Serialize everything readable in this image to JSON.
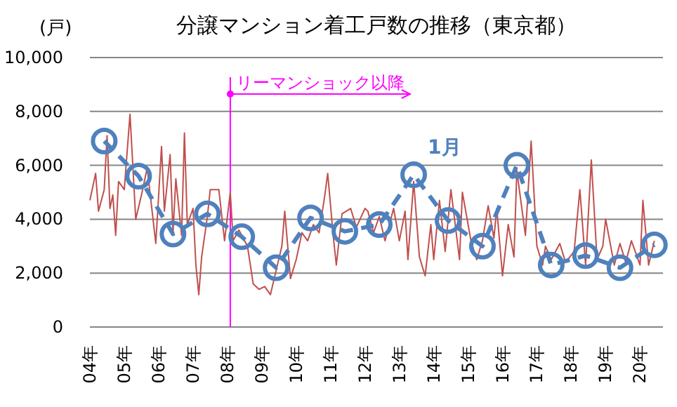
{
  "chart_data": {
    "type": "line",
    "title": "分譲マンション着工戸数の推移（東京都）",
    "ylabel": "(戸)",
    "xlim": [
      "2004-01",
      "2020-09"
    ],
    "xticks": [
      {
        "value": "2004-01",
        "label": "04年"
      },
      {
        "value": "2005-01",
        "label": "05年"
      },
      {
        "value": "2006-01",
        "label": "06年"
      },
      {
        "value": "2007-01",
        "label": "07年"
      },
      {
        "value": "2008-01",
        "label": "08年"
      },
      {
        "value": "2009-01",
        "label": "09年"
      },
      {
        "value": "2010-01",
        "label": "10年"
      },
      {
        "value": "2011-01",
        "label": "11年"
      },
      {
        "value": "2012-01",
        "label": "12年"
      },
      {
        "value": "2013-01",
        "label": "13年"
      },
      {
        "value": "2014-01",
        "label": "14年"
      },
      {
        "value": "2015-01",
        "label": "15年"
      },
      {
        "value": "2016-01",
        "label": "16年"
      },
      {
        "value": "2017-01",
        "label": "17年"
      },
      {
        "value": "2018-01",
        "label": "18年"
      },
      {
        "value": "2019-01",
        "label": "19年"
      },
      {
        "value": "2020-01",
        "label": "20年"
      }
    ],
    "ylim": [
      0,
      10000
    ],
    "yticks": [
      {
        "value": 0,
        "label": "0"
      },
      {
        "value": 2000,
        "label": "2,000"
      },
      {
        "value": 4000,
        "label": "4,000"
      },
      {
        "value": 6000,
        "label": "6,000"
      },
      {
        "value": 8000,
        "label": "8,000"
      },
      {
        "value": 10000,
        "label": "10,000"
      }
    ],
    "grid": "y",
    "legend": false,
    "ref_lines": [
      {
        "axis": "x",
        "value": "2008-02",
        "label": "リーマンショック以降",
        "color": "#ff00ff",
        "line_style": "solid"
      }
    ],
    "series": [
      {
        "color": "#c0504d",
        "marker": "none",
        "line_style": "solid",
        "x": [
          "2004-01",
          "2004-03",
          "2004-04",
          "2004-06",
          "2004-07",
          "2004-08",
          "2004-09",
          "2004-10",
          "2004-11",
          "2005-01",
          "2005-03",
          "2005-05",
          "2005-07",
          "2005-09",
          "2005-12",
          "2006-02",
          "2006-03",
          "2006-05",
          "2006-06",
          "2006-07",
          "2006-09",
          "2006-10",
          "2006-11",
          "2007-01",
          "2007-02",
          "2007-03",
          "2007-04",
          "2007-06",
          "2007-07",
          "2007-10",
          "2007-12",
          "2008-02",
          "2008-03",
          "2008-05",
          "2008-08",
          "2008-10",
          "2008-12",
          "2009-02",
          "2009-04",
          "2009-06",
          "2009-08",
          "2009-09",
          "2009-11",
          "2010-01",
          "2010-03",
          "2010-05",
          "2010-07",
          "2010-09",
          "2010-11",
          "2010-12",
          "2011-02",
          "2011-03",
          "2011-05",
          "2011-08",
          "2011-10",
          "2012-01",
          "2012-02",
          "2012-04",
          "2012-06",
          "2012-08",
          "2012-11",
          "2013-01",
          "2013-03",
          "2013-04",
          "2013-06",
          "2013-08",
          "2013-10",
          "2013-12",
          "2014-01",
          "2014-03",
          "2014-05",
          "2014-07",
          "2014-10",
          "2014-11",
          "2015-02",
          "2015-04",
          "2015-06",
          "2015-08",
          "2015-10",
          "2015-11",
          "2016-01",
          "2016-03",
          "2016-05",
          "2016-06",
          "2016-08",
          "2016-09",
          "2016-11",
          "2017-01",
          "2017-03",
          "2017-04",
          "2017-06",
          "2017-09",
          "2017-11",
          "2018-02",
          "2018-04",
          "2018-06",
          "2018-08",
          "2018-10",
          "2018-12",
          "2019-01",
          "2019-04",
          "2019-06",
          "2019-08",
          "2019-10",
          "2020-01",
          "2020-02",
          "2020-04",
          "2020-06"
        ],
        "values": [
          4700,
          5700,
          4300,
          5100,
          7100,
          4400,
          4900,
          3400,
          5400,
          5100,
          7900,
          4000,
          4900,
          5900,
          3100,
          6700,
          4300,
          6400,
          3500,
          5500,
          3400,
          7200,
          3800,
          4400,
          2300,
          1200,
          2600,
          4100,
          5100,
          5100,
          3200,
          5000,
          3200,
          3600,
          3000,
          1600,
          1400,
          1500,
          1200,
          2100,
          3000,
          4300,
          1800,
          2500,
          3500,
          3200,
          3800,
          3500,
          4900,
          5700,
          3300,
          2300,
          4200,
          4400,
          3700,
          4400,
          4300,
          3500,
          4100,
          3200,
          4400,
          3200,
          4300,
          2500,
          5400,
          2600,
          1900,
          3800,
          2500,
          4700,
          2800,
          5100,
          2500,
          5000,
          3200,
          2500,
          3200,
          4500,
          3300,
          4400,
          1900,
          3800,
          2600,
          5800,
          4200,
          3400,
          6900,
          3000,
          2300,
          3000,
          2500,
          3100,
          2400,
          2800,
          5100,
          2300,
          6200,
          2500,
          3000,
          4000,
          2300,
          3100,
          2400,
          3200,
          2300,
          4700,
          2300,
          3200
        ]
      },
      {
        "name": "1月",
        "color": "#4f81bd",
        "marker": "circle",
        "line_style": "dashed",
        "x": [
          "2004-06",
          "2005-06",
          "2006-06",
          "2007-06",
          "2008-06",
          "2009-06",
          "2010-06",
          "2011-06",
          "2012-06",
          "2013-06",
          "2014-06",
          "2015-06",
          "2016-06",
          "2017-06",
          "2018-06",
          "2019-06",
          "2020-06"
        ],
        "values": [
          6900,
          5600,
          3450,
          4200,
          3350,
          2200,
          4050,
          3550,
          3800,
          5650,
          3950,
          3000,
          6000,
          2300,
          2650,
          2200,
          3050
        ]
      }
    ]
  }
}
